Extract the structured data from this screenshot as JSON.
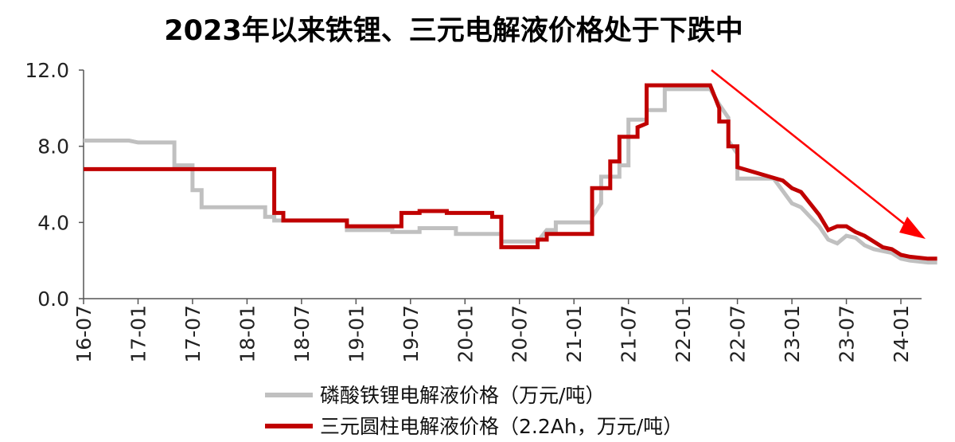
{
  "chart_data": {
    "type": "line",
    "title": "2023年以来铁锂、三元电解液价格处于下跌中",
    "y_axis": {
      "min": 0,
      "max": 12,
      "ticks": [
        "0.0",
        "4.0",
        "8.0",
        "12.0"
      ]
    },
    "x_axis": {
      "start": "2016-07",
      "end": "2024-05",
      "ticks": [
        "16-07",
        "17-01",
        "17-07",
        "18-01",
        "18-07",
        "19-01",
        "19-07",
        "20-01",
        "20-07",
        "21-01",
        "21-07",
        "22-01",
        "22-07",
        "23-01",
        "23-07",
        "24-01"
      ]
    },
    "grid": false,
    "legend_position": "bottom",
    "annotation": "red downward trend arrow from 2022-04 to 2024-05",
    "series": [
      {
        "name": "磷酸铁锂电解液价格（万元/吨）",
        "color": "#c0c0c0",
        "step": true,
        "points": [
          [
            "2016-07",
            8.3
          ],
          [
            "2016-12",
            8.3
          ],
          [
            "2017-01",
            8.2
          ],
          [
            "2017-05",
            8.2
          ],
          [
            "2017-05",
            7.0
          ],
          [
            "2017-07",
            7.0
          ],
          [
            "2017-07",
            5.7
          ],
          [
            "2017-08",
            5.7
          ],
          [
            "2017-08",
            4.8
          ],
          [
            "2018-03",
            4.8
          ],
          [
            "2018-03",
            4.3
          ],
          [
            "2018-04",
            4.3
          ],
          [
            "2018-04",
            4.1
          ],
          [
            "2018-12",
            4.1
          ],
          [
            "2018-12",
            3.6
          ],
          [
            "2019-05",
            3.6
          ],
          [
            "2019-05",
            3.5
          ],
          [
            "2019-08",
            3.5
          ],
          [
            "2019-08",
            3.7
          ],
          [
            "2019-12",
            3.7
          ],
          [
            "2019-12",
            3.4
          ],
          [
            "2020-05",
            3.4
          ],
          [
            "2020-05",
            3.0
          ],
          [
            "2020-09",
            3.0
          ],
          [
            "2020-10",
            3.6
          ],
          [
            "2020-11",
            3.6
          ],
          [
            "2020-11",
            4.0
          ],
          [
            "2021-03",
            4.0
          ],
          [
            "2021-03",
            4.3
          ],
          [
            "2021-04",
            5.0
          ],
          [
            "2021-04",
            6.4
          ],
          [
            "2021-06",
            6.4
          ],
          [
            "2021-06",
            7.0
          ],
          [
            "2021-07",
            7.0
          ],
          [
            "2021-07",
            9.4
          ],
          [
            "2021-09",
            9.4
          ],
          [
            "2021-09",
            9.9
          ],
          [
            "2021-11",
            9.9
          ],
          [
            "2021-11",
            11.0
          ],
          [
            "2022-04",
            11.0
          ],
          [
            "2022-05",
            10.2
          ],
          [
            "2022-06",
            9.5
          ],
          [
            "2022-06",
            8.3
          ],
          [
            "2022-07",
            7.6
          ],
          [
            "2022-07",
            6.3
          ],
          [
            "2022-11",
            6.3
          ],
          [
            "2023-01",
            5.0
          ],
          [
            "2023-02",
            4.8
          ],
          [
            "2023-03",
            4.3
          ],
          [
            "2023-04",
            3.8
          ],
          [
            "2023-05",
            3.1
          ],
          [
            "2023-06",
            2.9
          ],
          [
            "2023-07",
            3.3
          ],
          [
            "2023-08",
            3.2
          ],
          [
            "2023-09",
            2.8
          ],
          [
            "2023-10",
            2.6
          ],
          [
            "2023-12",
            2.4
          ],
          [
            "2024-01",
            2.1
          ],
          [
            "2024-02",
            2.0
          ],
          [
            "2024-04",
            1.9
          ],
          [
            "2024-05",
            1.9
          ]
        ]
      },
      {
        "name": "三元圆柱电解液价格（2.2Ah，万元/吨）",
        "color": "#c00000",
        "step": true,
        "points": [
          [
            "2016-07",
            6.8
          ],
          [
            "2018-04",
            6.8
          ],
          [
            "2018-04",
            4.5
          ],
          [
            "2018-05",
            4.5
          ],
          [
            "2018-05",
            4.1
          ],
          [
            "2018-12",
            4.1
          ],
          [
            "2018-12",
            3.8
          ],
          [
            "2019-06",
            3.8
          ],
          [
            "2019-06",
            4.5
          ],
          [
            "2019-08",
            4.5
          ],
          [
            "2019-08",
            4.6
          ],
          [
            "2019-11",
            4.6
          ],
          [
            "2019-11",
            4.5
          ],
          [
            "2020-04",
            4.5
          ],
          [
            "2020-04",
            4.3
          ],
          [
            "2020-05",
            4.3
          ],
          [
            "2020-05",
            2.7
          ],
          [
            "2020-09",
            2.7
          ],
          [
            "2020-09",
            3.1
          ],
          [
            "2020-10",
            3.1
          ],
          [
            "2020-10",
            3.4
          ],
          [
            "2021-03",
            3.4
          ],
          [
            "2021-03",
            5.8
          ],
          [
            "2021-05",
            5.8
          ],
          [
            "2021-05",
            7.2
          ],
          [
            "2021-06",
            7.2
          ],
          [
            "2021-06",
            8.5
          ],
          [
            "2021-08",
            8.5
          ],
          [
            "2021-08",
            9.0
          ],
          [
            "2021-09",
            9.2
          ],
          [
            "2021-09",
            11.2
          ],
          [
            "2022-04",
            11.2
          ],
          [
            "2022-05",
            10.0
          ],
          [
            "2022-05",
            9.3
          ],
          [
            "2022-06",
            9.3
          ],
          [
            "2022-06",
            8.0
          ],
          [
            "2022-07",
            8.0
          ],
          [
            "2022-07",
            6.9
          ],
          [
            "2022-12",
            6.2
          ],
          [
            "2023-01",
            5.8
          ],
          [
            "2023-02",
            5.6
          ],
          [
            "2023-03",
            5.0
          ],
          [
            "2023-04",
            4.4
          ],
          [
            "2023-05",
            3.6
          ],
          [
            "2023-06",
            3.8
          ],
          [
            "2023-07",
            3.8
          ],
          [
            "2023-08",
            3.5
          ],
          [
            "2023-09",
            3.3
          ],
          [
            "2023-10",
            3.0
          ],
          [
            "2023-11",
            2.7
          ],
          [
            "2023-12",
            2.6
          ],
          [
            "2024-01",
            2.3
          ],
          [
            "2024-02",
            2.2
          ],
          [
            "2024-04",
            2.1
          ],
          [
            "2024-05",
            2.1
          ]
        ]
      }
    ]
  }
}
